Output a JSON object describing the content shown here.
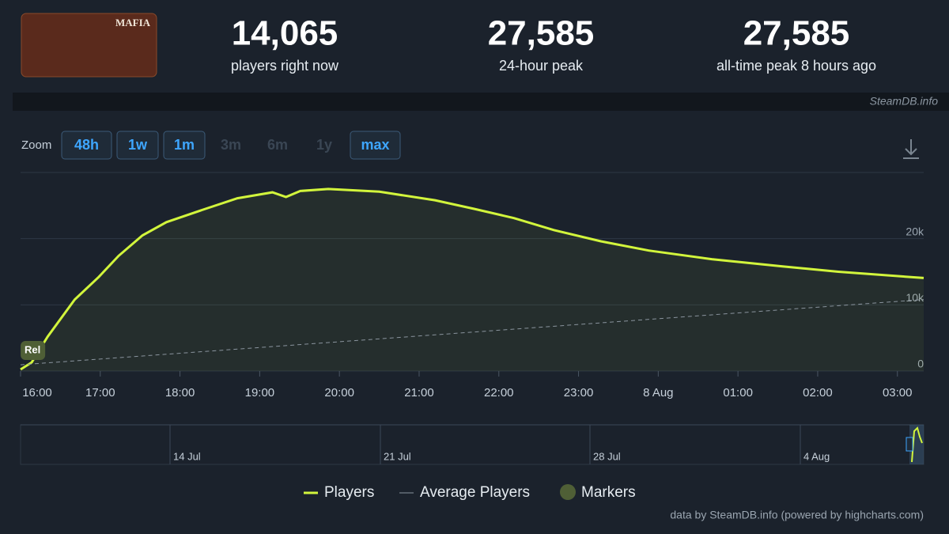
{
  "header": {
    "game_logo": "MAFIA",
    "stats": [
      {
        "value": "14,065",
        "label": "players right now"
      },
      {
        "value": "27,585",
        "label": "24-hour peak"
      },
      {
        "value": "27,585",
        "label": "all-time peak 8 hours ago"
      }
    ],
    "source": "SteamDB.info"
  },
  "zoom": {
    "label": "Zoom",
    "buttons": [
      {
        "label": "48h",
        "enabled": true
      },
      {
        "label": "1w",
        "enabled": true
      },
      {
        "label": "1m",
        "enabled": true
      },
      {
        "label": "3m",
        "enabled": false
      },
      {
        "label": "6m",
        "enabled": false
      },
      {
        "label": "1y",
        "enabled": false
      },
      {
        "label": "max",
        "enabled": true
      }
    ]
  },
  "chart_data": {
    "type": "line",
    "xlim": [
      16,
      27.33
    ],
    "ylim": [
      0,
      30000
    ],
    "xticks": [
      {
        "value": 16,
        "label": "16:00"
      },
      {
        "value": 17,
        "label": "17:00"
      },
      {
        "value": 18,
        "label": "18:00"
      },
      {
        "value": 19,
        "label": "19:00"
      },
      {
        "value": 20,
        "label": "20:00"
      },
      {
        "value": 21,
        "label": "21:00"
      },
      {
        "value": 22,
        "label": "22:00"
      },
      {
        "value": 23,
        "label": "23:00"
      },
      {
        "value": 24,
        "label": "8 Aug"
      },
      {
        "value": 25,
        "label": "01:00"
      },
      {
        "value": 26,
        "label": "02:00"
      },
      {
        "value": 27,
        "label": "03:00"
      }
    ],
    "yticks": [
      0,
      {
        "value": 10000,
        "label": "10k"
      },
      {
        "value": 20000,
        "label": "20k"
      }
    ],
    "grid": true,
    "series": [
      {
        "name": "Players",
        "color": "#d2f53c",
        "x": [
          16.0,
          16.14,
          16.34,
          16.68,
          16.98,
          17.23,
          17.53,
          17.83,
          18.32,
          18.72,
          19.16,
          19.33,
          19.51,
          19.86,
          20.5,
          21.2,
          21.69,
          22.19,
          22.69,
          23.28,
          23.88,
          24.67,
          25.56,
          26.26,
          27.33
        ],
        "values": [
          240,
          1300,
          5200,
          10800,
          14200,
          17400,
          20500,
          22500,
          24500,
          26100,
          27000,
          26300,
          27200,
          27500,
          27100,
          25800,
          24500,
          23100,
          21300,
          19600,
          18200,
          16900,
          15800,
          15000,
          14050
        ]
      },
      {
        "name": "Average Players",
        "color": "#8a949e",
        "dashed": true,
        "x": [
          16.0,
          27.33
        ],
        "values": [
          950,
          10800
        ]
      }
    ],
    "markers": [
      {
        "x": 16.15,
        "label": "Rel"
      }
    ],
    "marker_legend": "Markers",
    "marker_color": "#4f5f36",
    "navigator": [
      "14 Jul",
      "21 Jul",
      "28 Jul",
      "4 Aug"
    ],
    "credit": "data by SteamDB.info (powered by highcharts.com)"
  }
}
